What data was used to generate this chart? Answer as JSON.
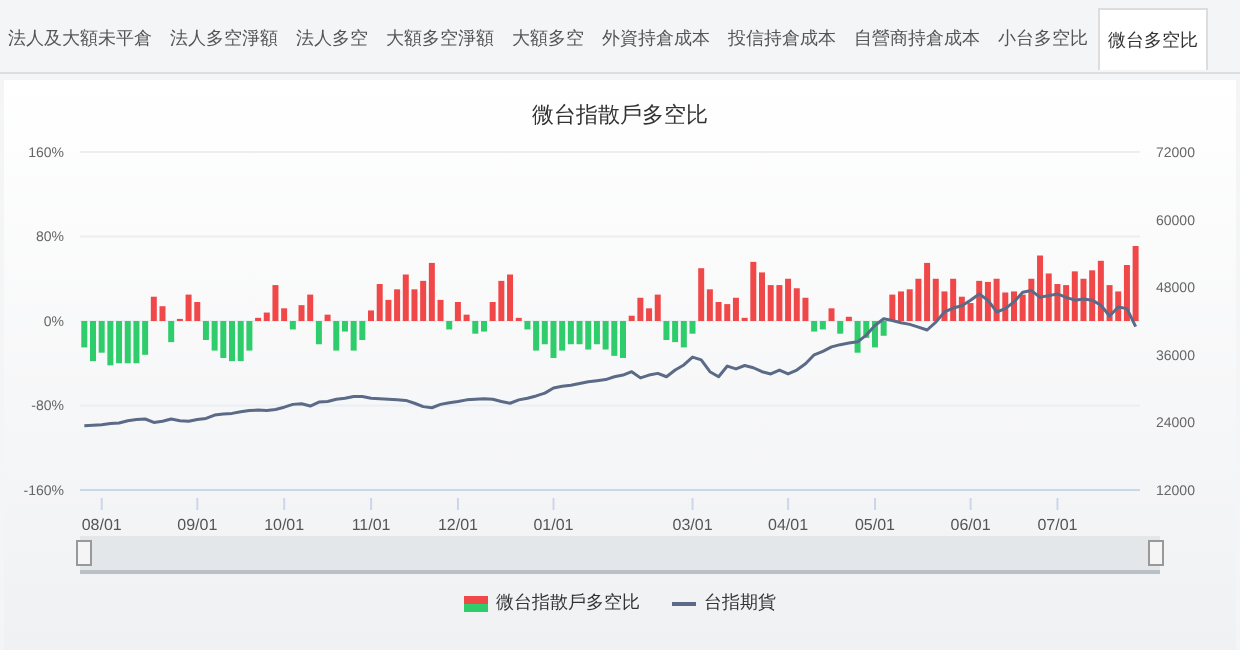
{
  "chart_data": {
    "type": "bar",
    "title": "微台指散戶多空比",
    "categories": [
      null,
      null,
      "08/01",
      null,
      null,
      null,
      null,
      null,
      null,
      null,
      null,
      null,
      null,
      "09/01",
      null,
      null,
      null,
      null,
      null,
      null,
      null,
      null,
      null,
      "10/01",
      null,
      null,
      null,
      null,
      null,
      null,
      null,
      null,
      null,
      "11/01",
      null,
      null,
      null,
      null,
      null,
      null,
      null,
      null,
      null,
      "12/01",
      null,
      null,
      null,
      null,
      null,
      null,
      null,
      null,
      null,
      null,
      "01/01",
      null,
      null,
      null,
      null,
      null,
      null,
      null,
      null,
      null,
      null,
      null,
      null,
      null,
      null,
      null,
      "03/01",
      null,
      null,
      null,
      null,
      null,
      null,
      null,
      null,
      null,
      null,
      "04/01",
      null,
      null,
      null,
      null,
      null,
      null,
      null,
      null,
      null,
      "05/01",
      null,
      null,
      null,
      null,
      null,
      null,
      null,
      null,
      null,
      null,
      "06/01",
      null,
      null,
      null,
      null,
      null,
      null,
      null,
      null,
      null,
      "07/01",
      null,
      null,
      null,
      null,
      null,
      null,
      null,
      null,
      null
    ],
    "series": [
      {
        "name": "微台指散戶多空比",
        "values": [
          -25,
          -38,
          -30,
          -42,
          -40,
          -40,
          -40,
          -32,
          23,
          14,
          -20,
          2,
          25,
          18,
          -18,
          -28,
          -35,
          -38,
          -38,
          -28,
          3,
          8,
          34,
          12,
          -8,
          15,
          25,
          -22,
          6,
          -28,
          -10,
          -28,
          -18,
          10,
          35,
          20,
          30,
          44,
          30,
          38,
          55,
          20,
          -8,
          18,
          6,
          -12,
          -10,
          18,
          38,
          44,
          3,
          -8,
          -28,
          -22,
          -35,
          -28,
          -22,
          -22,
          -27,
          -22,
          -27,
          -33,
          -35,
          5,
          22,
          12,
          25,
          -18,
          -20,
          -25,
          -12,
          50,
          30,
          18,
          16,
          22,
          3,
          56,
          46,
          34,
          34,
          40,
          31,
          22,
          -10,
          -8,
          12,
          -12,
          4,
          -30,
          -16,
          -25,
          -14,
          25,
          28,
          30,
          40,
          55,
          40,
          28,
          40,
          23,
          17,
          38,
          37,
          40,
          27,
          28,
          25,
          40,
          62,
          45,
          35,
          34,
          47,
          40,
          48,
          57,
          34,
          28,
          53,
          71
        ],
        "colors": [
          "#2ecc6a",
          "#2ecc6a",
          "#2ecc6a",
          "#2ecc6a",
          "#2ecc6a",
          "#2ecc6a",
          "#2ecc6a",
          "#2ecc6a",
          "#f04848",
          "#f04848",
          "#2ecc6a",
          "#f04848",
          "#f04848",
          "#f04848",
          "#2ecc6a",
          "#2ecc6a",
          "#2ecc6a",
          "#2ecc6a",
          "#2ecc6a",
          "#2ecc6a",
          "#f04848",
          "#f04848",
          "#f04848",
          "#f04848",
          "#2ecc6a",
          "#f04848",
          "#f04848",
          "#2ecc6a",
          "#f04848",
          "#2ecc6a",
          "#2ecc6a",
          "#2ecc6a",
          "#2ecc6a",
          "#f04848",
          "#f04848",
          "#f04848",
          "#f04848",
          "#f04848",
          "#f04848",
          "#f04848",
          "#f04848",
          "#f04848",
          "#2ecc6a",
          "#f04848",
          "#f04848",
          "#2ecc6a",
          "#2ecc6a",
          "#f04848",
          "#f04848",
          "#f04848",
          "#f04848",
          "#2ecc6a",
          "#2ecc6a",
          "#2ecc6a",
          "#2ecc6a",
          "#2ecc6a",
          "#2ecc6a",
          "#2ecc6a",
          "#2ecc6a",
          "#2ecc6a",
          "#2ecc6a",
          "#2ecc6a",
          "#2ecc6a",
          "#f04848",
          "#f04848",
          "#f04848",
          "#f04848",
          "#2ecc6a",
          "#2ecc6a",
          "#2ecc6a",
          "#2ecc6a",
          "#f04848",
          "#f04848",
          "#f04848",
          "#f04848",
          "#f04848",
          "#f04848",
          "#f04848",
          "#f04848",
          "#f04848",
          "#f04848",
          "#f04848",
          "#f04848",
          "#f04848",
          "#2ecc6a",
          "#2ecc6a",
          "#f04848",
          "#2ecc6a",
          "#f04848",
          "#2ecc6a",
          "#2ecc6a",
          "#2ecc6a",
          "#2ecc6a",
          "#f04848",
          "#f04848",
          "#f04848",
          "#f04848",
          "#f04848",
          "#f04848",
          "#f04848",
          "#f04848",
          "#f04848",
          "#f04848",
          "#f04848",
          "#f04848",
          "#f04848",
          "#f04848",
          "#f04848",
          "#f04848",
          "#f04848",
          "#f04848",
          "#f04848",
          "#f04848",
          "#f04848",
          "#f04848",
          "#f04848",
          "#f04848",
          "#f04848",
          "#f04848",
          "#f04848",
          "#f04848",
          "#f04848"
        ]
      },
      {
        "name": "台指期貨",
        "type": "line",
        "axis": "y2",
        "color": "#5b6a86",
        "values": [
          23400,
          23500,
          23600,
          23800,
          23900,
          24300,
          24500,
          24600,
          24000,
          24200,
          24600,
          24300,
          24200,
          24500,
          24700,
          25300,
          25500,
          25600,
          25900,
          26100,
          26200,
          26100,
          26300,
          26700,
          27200,
          27300,
          26900,
          27600,
          27700,
          28100,
          28300,
          28600,
          28600,
          28300,
          28200,
          28100,
          28000,
          27900,
          27400,
          26800,
          26600,
          27200,
          27500,
          27700,
          28000,
          28100,
          28200,
          28100,
          27700,
          27400,
          28000,
          28300,
          28700,
          29200,
          30100,
          30400,
          30600,
          30900,
          31200,
          31400,
          31600,
          32100,
          32400,
          33000,
          31900,
          32400,
          32700,
          32100,
          33300,
          34200,
          35600,
          35100,
          33000,
          32100,
          34000,
          33500,
          34100,
          33700,
          33000,
          32600,
          33300,
          32600,
          33300,
          34400,
          36000,
          36600,
          37400,
          37800,
          38100,
          38300,
          39500,
          41200,
          42400,
          42100,
          41700,
          41400,
          40900,
          40400,
          41800,
          43600,
          44300,
          44700,
          45700,
          46800,
          45700,
          43600,
          44200,
          45400,
          47100,
          47400,
          46200,
          46500,
          46800,
          46200,
          45700,
          45900,
          45700,
          44800,
          42900,
          44500,
          44200,
          41000
        ]
      }
    ],
    "ylim": [
      -160,
      160
    ],
    "yticks": [
      {
        "value": -160,
        "label": "-160%"
      },
      {
        "value": -80,
        "label": "-80%"
      },
      {
        "value": 0,
        "label": "0%"
      },
      {
        "value": 80,
        "label": "80%"
      },
      {
        "value": 160,
        "label": "160%"
      }
    ],
    "y2lim": [
      12000,
      72000
    ],
    "y2ticks": [
      12000,
      24000,
      36000,
      48000,
      60000,
      72000
    ],
    "grid": "y",
    "legend": "bottom",
    "marker": "none",
    "annotations": [
      "法人及大額未平倉",
      "法人多空淨額",
      "法人多空",
      "大額多空淨額",
      "大額多空",
      "外資持倉成本",
      "投信持倉成本",
      "自營商持倉成本",
      "小台多空比",
      "微台多空比"
    ]
  }
}
